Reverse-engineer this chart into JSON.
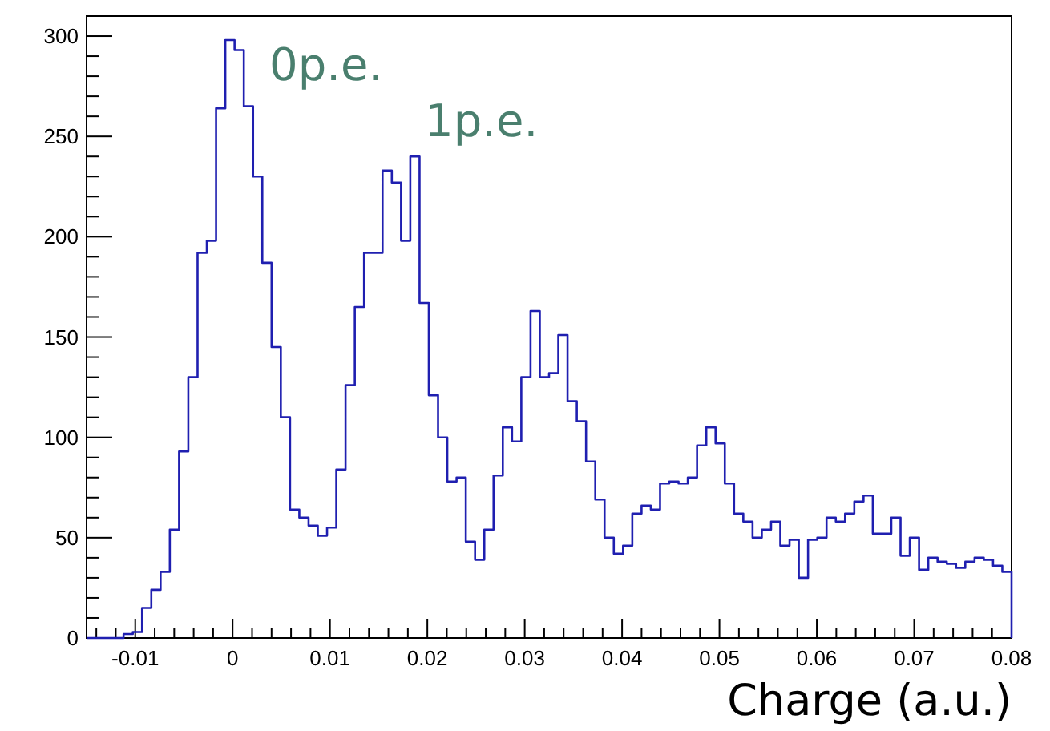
{
  "chart_data": {
    "type": "histogram",
    "xlabel": "Charge (a.u.)",
    "bins": [
      -0.015,
      -0.01405,
      -0.0131,
      -0.01215,
      -0.0112,
      -0.01025,
      -0.0093,
      -0.00835,
      -0.0074,
      -0.00645,
      -0.0055,
      -0.00455,
      -0.0036,
      -0.00265,
      -0.0017,
      -0.00075,
      0.0002,
      0.00115,
      0.0021,
      0.00305,
      0.004,
      0.00495,
      0.0059,
      0.00685,
      0.0078,
      0.00875,
      0.0097,
      0.01065,
      0.0116,
      0.01255,
      0.0135,
      0.01445,
      0.0154,
      0.01635,
      0.0173,
      0.01825,
      0.0192,
      0.02015,
      0.0211,
      0.02205,
      0.023,
      0.02395,
      0.0249,
      0.02585,
      0.0268,
      0.02775,
      0.0287,
      0.02965,
      0.0306,
      0.03155,
      0.0325,
      0.03345,
      0.0344,
      0.03535,
      0.0363,
      0.03725,
      0.0382,
      0.03915,
      0.0401,
      0.04105,
      0.042,
      0.04295,
      0.0439,
      0.04485,
      0.0458,
      0.04675,
      0.0477,
      0.04865,
      0.0496,
      0.05055,
      0.0515,
      0.05245,
      0.0534,
      0.05435,
      0.0553,
      0.05625,
      0.0572,
      0.05815,
      0.0591,
      0.06005,
      0.061,
      0.06195,
      0.0629,
      0.06385,
      0.0648,
      0.06575,
      0.0667,
      0.06765,
      0.0686,
      0.06955,
      0.0705,
      0.07145,
      0.0724,
      0.07335,
      0.0743,
      0.07525,
      0.0762,
      0.07715,
      0.0781,
      0.07905,
      0.08
    ],
    "values": [
      0,
      0,
      0,
      0,
      2,
      3,
      15,
      24,
      33,
      54,
      93,
      130,
      192,
      198,
      264,
      298,
      293,
      265,
      230,
      187,
      145,
      110,
      64,
      60,
      56,
      51,
      55,
      84,
      126,
      165,
      192,
      192,
      233,
      227,
      198,
      240,
      167,
      121,
      100,
      78,
      80,
      48,
      39,
      54,
      81,
      105,
      98,
      130,
      163,
      130,
      132,
      151,
      118,
      108,
      88,
      69,
      50,
      42,
      46,
      62,
      66,
      64,
      77,
      78,
      77,
      80,
      96,
      105,
      97,
      77,
      62,
      58,
      50,
      54,
      58,
      46,
      49,
      30,
      49,
      50,
      60,
      58,
      62,
      68,
      71,
      52,
      52,
      60,
      41,
      50,
      34,
      40,
      38,
      37,
      35,
      38,
      40,
      39,
      36,
      33
    ],
    "color": "#1f1fb0",
    "xlim": [
      -0.015,
      0.08
    ],
    "ylim": [
      0,
      310
    ],
    "xticks": [
      {
        "value": -0.014,
        "label": null
      },
      {
        "value": -0.012,
        "label": null
      },
      -0.01,
      {
        "value": -0.008,
        "label": null
      },
      {
        "value": -0.006,
        "label": null
      },
      {
        "value": -0.004,
        "label": null
      },
      {
        "value": -0.002,
        "label": null
      },
      0,
      {
        "value": 0.002,
        "label": null
      },
      {
        "value": 0.004,
        "label": null
      },
      {
        "value": 0.006,
        "label": null
      },
      {
        "value": 0.008,
        "label": null
      },
      0.01,
      {
        "value": 0.012,
        "label": null
      },
      {
        "value": 0.014,
        "label": null
      },
      {
        "value": 0.016,
        "label": null
      },
      {
        "value": 0.018,
        "label": null
      },
      0.02,
      {
        "value": 0.022,
        "label": null
      },
      {
        "value": 0.024,
        "label": null
      },
      {
        "value": 0.026,
        "label": null
      },
      {
        "value": 0.028,
        "label": null
      },
      0.03,
      {
        "value": 0.032,
        "label": null
      },
      {
        "value": 0.034,
        "label": null
      },
      {
        "value": 0.036,
        "label": null
      },
      {
        "value": 0.038,
        "label": null
      },
      0.04,
      {
        "value": 0.042,
        "label": null
      },
      {
        "value": 0.044,
        "label": null
      },
      {
        "value": 0.046,
        "label": null
      },
      {
        "value": 0.048,
        "label": null
      },
      0.05,
      {
        "value": 0.052,
        "label": null
      },
      {
        "value": 0.054,
        "label": null
      },
      {
        "value": 0.056,
        "label": null
      },
      {
        "value": 0.058,
        "label": null
      },
      0.06,
      {
        "value": 0.062,
        "label": null
      },
      {
        "value": 0.064,
        "label": null
      },
      {
        "value": 0.066,
        "label": null
      },
      {
        "value": 0.068,
        "label": null
      },
      0.07,
      {
        "value": 0.072,
        "label": null
      },
      {
        "value": 0.074,
        "label": null
      },
      {
        "value": 0.076,
        "label": null
      },
      {
        "value": 0.078,
        "label": null
      },
      0.08
    ],
    "yticks": [
      0,
      {
        "value": 10,
        "label": null
      },
      {
        "value": 20,
        "label": null
      },
      {
        "value": 30,
        "label": null
      },
      {
        "value": 40,
        "label": null
      },
      50,
      {
        "value": 60,
        "label": null
      },
      {
        "value": 70,
        "label": null
      },
      {
        "value": 80,
        "label": null
      },
      {
        "value": 90,
        "label": null
      },
      100,
      {
        "value": 110,
        "label": null
      },
      {
        "value": 120,
        "label": null
      },
      {
        "value": 130,
        "label": null
      },
      {
        "value": 140,
        "label": null
      },
      150,
      {
        "value": 160,
        "label": null
      },
      {
        "value": 170,
        "label": null
      },
      {
        "value": 180,
        "label": null
      },
      {
        "value": 190,
        "label": null
      },
      200,
      {
        "value": 210,
        "label": null
      },
      {
        "value": 220,
        "label": null
      },
      {
        "value": 230,
        "label": null
      },
      {
        "value": 240,
        "label": null
      },
      250,
      {
        "value": 260,
        "label": null
      },
      {
        "value": 270,
        "label": null
      },
      {
        "value": 280,
        "label": null
      },
      {
        "value": 290,
        "label": null
      },
      300,
      {
        "value": 310,
        "label": null
      }
    ],
    "annotations": [
      "0p.e.",
      "1p.e."
    ]
  }
}
